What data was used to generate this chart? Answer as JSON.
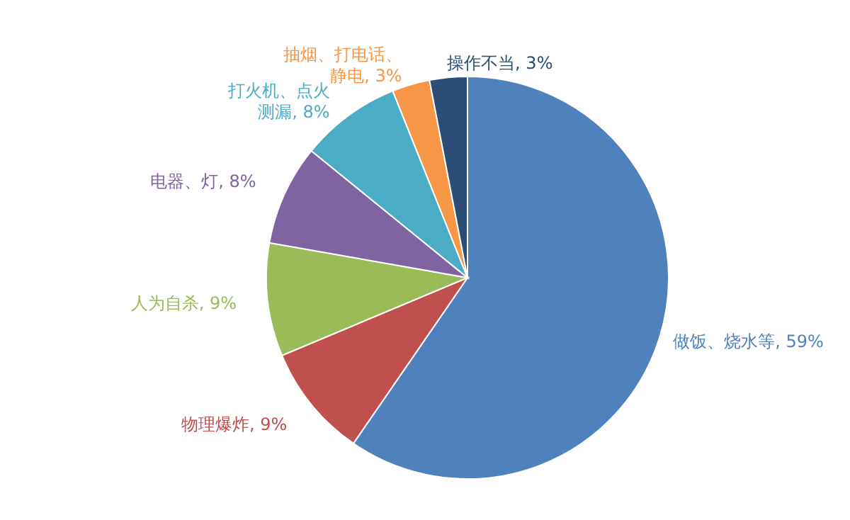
{
  "chart_data": {
    "type": "pie",
    "categories": [
      "做饭、烧水等",
      "物理爆炸",
      "人为自杀",
      "电器、灯",
      "打火机、点火测漏",
      "抽烟、打电话、静电",
      "操作不当"
    ],
    "values": [
      59,
      9,
      9,
      8,
      8,
      3,
      3
    ],
    "value_labels": [
      "59%",
      "9%",
      "9%",
      "8%",
      "8%",
      "3%",
      "3%"
    ],
    "colors": [
      "#4f81bd",
      "#c0504d",
      "#9bbb59",
      "#8064a2",
      "#4bacc6",
      "#f79646",
      "#2c4d75"
    ]
  }
}
